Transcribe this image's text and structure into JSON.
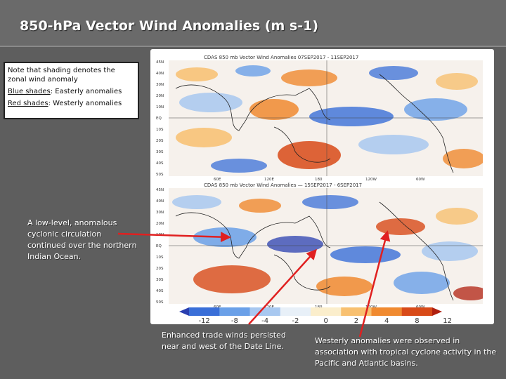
{
  "slide": {
    "title": "850-hPa Vector Wind Anomalies  (m s-1)"
  },
  "note_box": {
    "line1": "Note that shading denotes the zonal wind anomaly",
    "blue_label": "Blue shades",
    "blue_text": ": Easterly anomalies",
    "red_label": "Red shades",
    "red_text": ": Westerly anomalies"
  },
  "maps": {
    "top_header": "CDAS  850  mb  Vector  Wind  Anomalies          07SEP2017  -  11SEP2017",
    "bottom_header": "CDAS  850  mb  Vector  Wind  Anomalies  —  15SEP2017  -  6SEP2017",
    "lat_labels": [
      "45N",
      "40N",
      "30N",
      "20N",
      "10N",
      "EQ",
      "10S",
      "20S",
      "30S",
      "40S",
      "50S"
    ],
    "lon_labels": [
      "60E",
      "120E",
      "180",
      "120W",
      "60W"
    ],
    "colorbar_ticks": [
      "-12",
      "-8",
      "-4",
      "-2",
      "0",
      "2",
      "4",
      "8",
      "12"
    ],
    "colorbar_colors": [
      "#2a3fb0",
      "#3a6fd8",
      "#6aa0e8",
      "#a8c8f0",
      "#e8f0f8",
      "#fbeecc",
      "#f8c070",
      "#f08a30",
      "#d84a18",
      "#b02010"
    ]
  },
  "callouts": {
    "indian_ocean": "A low-level, anomalous cyclonic circulation continued over the northern Indian Ocean.",
    "trade_winds": "Enhanced trade winds persisted near and west of the Date Line.",
    "westerly": "Westerly anomalies were observed in association with tropical cyclone activity in the Pacific and Atlantic basins."
  },
  "colors": {
    "arrow": "#e02020"
  }
}
